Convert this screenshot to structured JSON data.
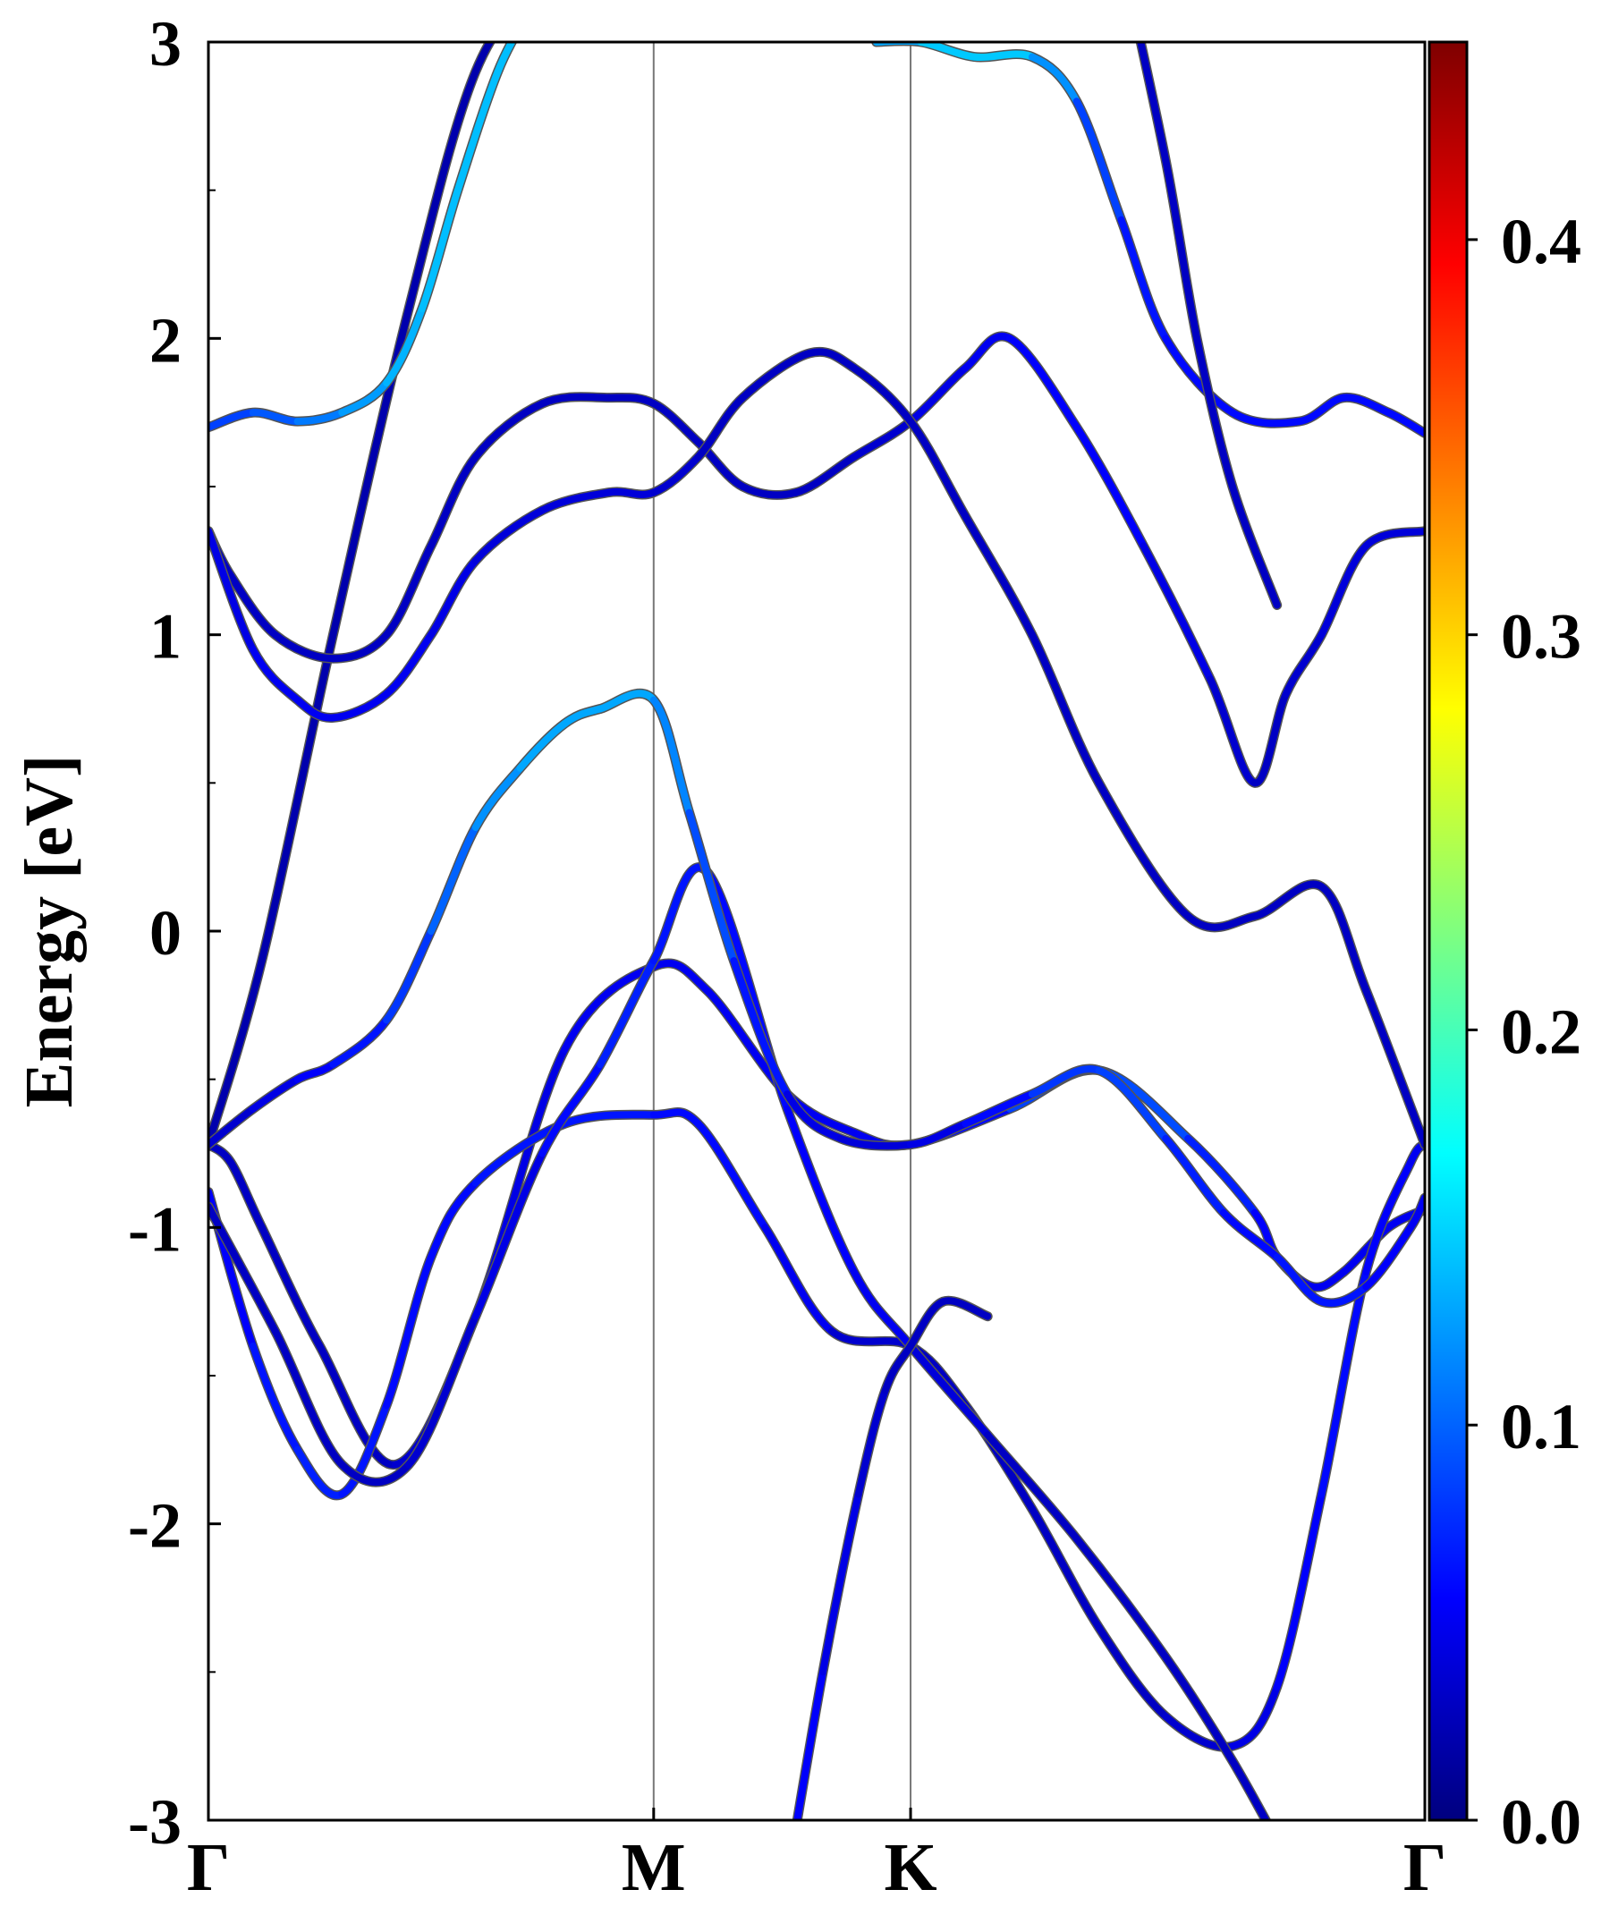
{
  "chart_data": {
    "type": "line",
    "title": "",
    "xlabel": "",
    "ylabel": "Energy [eV]",
    "ylim": [
      -3,
      3
    ],
    "xlim": [
      0,
      2.732
    ],
    "y_ticks": [
      {
        "value": 3,
        "label": "3"
      },
      {
        "value": 2,
        "label": "2"
      },
      {
        "value": 1,
        "label": "1"
      },
      {
        "value": 0,
        "label": "0"
      },
      {
        "value": -1,
        "label": "-1"
      },
      {
        "value": -2,
        "label": "-2"
      },
      {
        "value": -3,
        "label": "-3"
      }
    ],
    "high_symmetry_points": [
      {
        "label": "Γ",
        "x": 0
      },
      {
        "label": "M",
        "x": 1.0
      },
      {
        "label": "K",
        "x": 1.577
      },
      {
        "label": "Γ",
        "x": 2.732
      }
    ],
    "colorbar": {
      "colormap": "jet",
      "range": [
        0.0,
        0.45
      ],
      "ticks": [
        {
          "value": 0.0,
          "label": "0.0"
        },
        {
          "value": 0.1,
          "label": "0.1"
        },
        {
          "value": 0.2,
          "label": "0.2"
        },
        {
          "value": 0.3,
          "label": "0.3"
        },
        {
          "value": 0.4,
          "label": "0.4"
        }
      ]
    },
    "series": [
      {
        "x": [
          0,
          0.12,
          0.28,
          0.45,
          0.6,
          0.75,
          0.88,
          1.0
        ],
        "y": [
          -0.72,
          -0.1,
          1.0,
          2.1,
          2.9,
          3.2,
          3.3,
          3.3
        ],
        "weights": [
          0.02,
          0.02,
          0.02,
          0.02,
          0.02,
          0.02,
          0.02,
          0.02
        ]
      },
      {
        "x": [
          0,
          0.05,
          0.12,
          0.25,
          0.42,
          0.6,
          0.8,
          1.0,
          1.12,
          1.3,
          1.45,
          1.577,
          1.8,
          2.0,
          2.2,
          2.35,
          2.4,
          2.48,
          2.55,
          2.65,
          2.732
        ],
        "y": [
          -0.72,
          -0.78,
          -1.0,
          -1.4,
          -1.8,
          -1.3,
          -0.4,
          -0.12,
          -0.2,
          -0.55,
          -0.68,
          -0.72,
          -0.6,
          -0.47,
          -0.7,
          -0.95,
          -1.1,
          -1.2,
          -1.15,
          -1.0,
          -0.94
        ],
        "weights": [
          0.03,
          0.03,
          0.03,
          0.03,
          0.03,
          0.04,
          0.05,
          0.05,
          0.05,
          0.05,
          0.05,
          0.05,
          0.07,
          0.1,
          0.08,
          0.06,
          0.05,
          0.05,
          0.05,
          0.05,
          0.05
        ]
      },
      {
        "x": [
          0,
          0.1,
          0.2,
          0.3,
          0.4,
          0.5,
          0.6,
          0.8,
          1.0,
          1.1,
          1.25,
          1.4,
          1.577,
          1.7,
          1.85,
          2.0,
          2.15,
          2.3,
          2.4,
          2.5,
          2.6,
          2.7,
          2.732
        ],
        "y": [
          -0.88,
          -1.4,
          -1.75,
          -1.9,
          -1.6,
          -1.1,
          -0.85,
          -0.65,
          -0.62,
          -0.65,
          -1.0,
          -1.35,
          -1.4,
          -1.6,
          -1.95,
          -2.35,
          -2.65,
          -2.75,
          -2.55,
          -1.9,
          -1.15,
          -0.78,
          -0.72
        ],
        "weights": [
          0.05,
          0.06,
          0.07,
          0.07,
          0.06,
          0.06,
          0.06,
          0.07,
          0.06,
          0.06,
          0.06,
          0.04,
          0.03,
          0.03,
          0.03,
          0.03,
          0.03,
          0.04,
          0.05,
          0.06,
          0.06,
          0.05,
          0.05
        ]
      },
      {
        "x": [
          0,
          0.15,
          0.3,
          0.45,
          0.6,
          0.75,
          0.88,
          1.0,
          1.12,
          1.3,
          1.45,
          1.577,
          1.75,
          1.95,
          2.15,
          2.3,
          2.45,
          2.55,
          2.65,
          2.732
        ],
        "y": [
          -0.93,
          -1.35,
          -1.8,
          -1.8,
          -1.3,
          -0.75,
          -0.45,
          -0.1,
          0.2,
          -0.6,
          -1.15,
          -1.4,
          -1.7,
          -2.05,
          -2.45,
          -2.8,
          -3.2,
          -3.4,
          -3.4,
          -3.4
        ],
        "weights": [
          0.03,
          0.03,
          0.03,
          0.03,
          0.04,
          0.05,
          0.07,
          0.07,
          0.06,
          0.06,
          0.05,
          0.05,
          0.03,
          0.03,
          0.03,
          0.03,
          0.03,
          0.03,
          0.03,
          0.03
        ]
      },
      {
        "x": [
          0,
          0.1,
          0.2,
          0.28,
          0.4,
          0.5,
          0.6,
          0.7,
          0.8,
          0.88,
          1.0,
          1.08,
          1.18,
          1.3,
          1.42,
          1.577,
          1.7,
          1.85,
          2.0,
          2.15,
          2.28,
          2.4,
          2.5,
          2.6,
          2.7,
          2.732
        ],
        "y": [
          -0.72,
          -0.6,
          -0.5,
          -0.45,
          -0.3,
          0.0,
          0.35,
          0.55,
          0.7,
          0.75,
          0.78,
          0.4,
          -0.1,
          -0.55,
          -0.7,
          -0.72,
          -0.65,
          -0.55,
          -0.47,
          -0.7,
          -0.95,
          -1.1,
          -1.25,
          -1.2,
          -1.0,
          -0.9
        ],
        "weights": [
          0.03,
          0.04,
          0.05,
          0.06,
          0.07,
          0.09,
          0.11,
          0.13,
          0.13,
          0.13,
          0.13,
          0.1,
          0.08,
          0.05,
          0.04,
          0.04,
          0.05,
          0.07,
          0.09,
          0.08,
          0.06,
          0.06,
          0.07,
          0.06,
          0.05,
          0.05
        ]
      },
      {
        "x": [
          0,
          0.05,
          0.15,
          0.28,
          0.4,
          0.5,
          0.6,
          0.75,
          0.9,
          1.0,
          1.1,
          1.2,
          1.32,
          1.45,
          1.577,
          1.7,
          1.8,
          1.95,
          2.1,
          2.25,
          2.35,
          2.42,
          2.5,
          2.6,
          2.732
        ],
        "y": [
          1.35,
          1.2,
          1.0,
          0.92,
          1.0,
          1.3,
          1.6,
          1.78,
          1.8,
          1.78,
          1.65,
          1.5,
          1.48,
          1.6,
          1.72,
          1.9,
          2.0,
          1.7,
          1.3,
          0.85,
          0.5,
          0.8,
          1.0,
          1.3,
          1.35
        ],
        "weights": [
          0.03,
          0.03,
          0.03,
          0.03,
          0.03,
          0.03,
          0.03,
          0.03,
          0.03,
          0.03,
          0.03,
          0.03,
          0.03,
          0.03,
          0.04,
          0.05,
          0.05,
          0.06,
          0.05,
          0.04,
          0.03,
          0.03,
          0.04,
          0.04,
          0.04
        ]
      },
      {
        "x": [
          0,
          0.1,
          0.2,
          0.28,
          0.4,
          0.5,
          0.6,
          0.75,
          0.9,
          1.0,
          1.1,
          1.2,
          1.35,
          1.45,
          1.577,
          1.7,
          1.85,
          2.0,
          2.2,
          2.35,
          2.5,
          2.6,
          2.732
        ],
        "y": [
          1.35,
          0.95,
          0.78,
          0.72,
          0.8,
          1.0,
          1.25,
          1.42,
          1.48,
          1.48,
          1.6,
          1.8,
          1.95,
          1.9,
          1.72,
          1.4,
          1.0,
          0.5,
          0.05,
          0.05,
          0.15,
          -0.2,
          -0.72
        ],
        "weights": [
          0.04,
          0.05,
          0.05,
          0.05,
          0.05,
          0.05,
          0.04,
          0.04,
          0.04,
          0.04,
          0.03,
          0.03,
          0.03,
          0.03,
          0.03,
          0.03,
          0.03,
          0.03,
          0.03,
          0.03,
          0.03,
          0.03,
          0.03
        ]
      },
      {
        "x": [
          0,
          0.1,
          0.2,
          0.3,
          0.4,
          0.48,
          0.56,
          0.65,
          0.72
        ],
        "y": [
          1.7,
          1.75,
          1.72,
          1.75,
          1.85,
          2.1,
          2.5,
          2.9,
          3.1
        ],
        "weights": [
          0.08,
          0.09,
          0.1,
          0.12,
          0.13,
          0.14,
          0.14,
          0.14,
          0.14
        ]
      },
      {
        "x": [
          1.5,
          1.6,
          1.72,
          1.85,
          1.95,
          2.05,
          2.15,
          2.3,
          2.45,
          2.55,
          2.65,
          2.732
        ],
        "y": [
          3.0,
          3.0,
          2.95,
          2.95,
          2.8,
          2.4,
          2.0,
          1.75,
          1.72,
          1.8,
          1.75,
          1.68
        ],
        "weights": [
          0.12,
          0.14,
          0.15,
          0.14,
          0.1,
          0.07,
          0.06,
          0.06,
          0.06,
          0.06,
          0.06,
          0.06
        ]
      },
      {
        "x": [
          1.3,
          1.38,
          1.46,
          1.52,
          1.577,
          1.65,
          1.75
        ],
        "y": [
          -3.2,
          -2.5,
          -1.9,
          -1.55,
          -1.4,
          -1.25,
          -1.3
        ],
        "weights": [
          0.06,
          0.05,
          0.04,
          0.03,
          0.03,
          0.03,
          0.03
        ]
      },
      {
        "x": [
          2.05,
          2.15,
          2.22,
          2.3,
          2.4
        ],
        "y": [
          3.3,
          2.6,
          2.0,
          1.5,
          1.1
        ],
        "weights": [
          0.03,
          0.03,
          0.03,
          0.03,
          0.03
        ]
      }
    ]
  }
}
